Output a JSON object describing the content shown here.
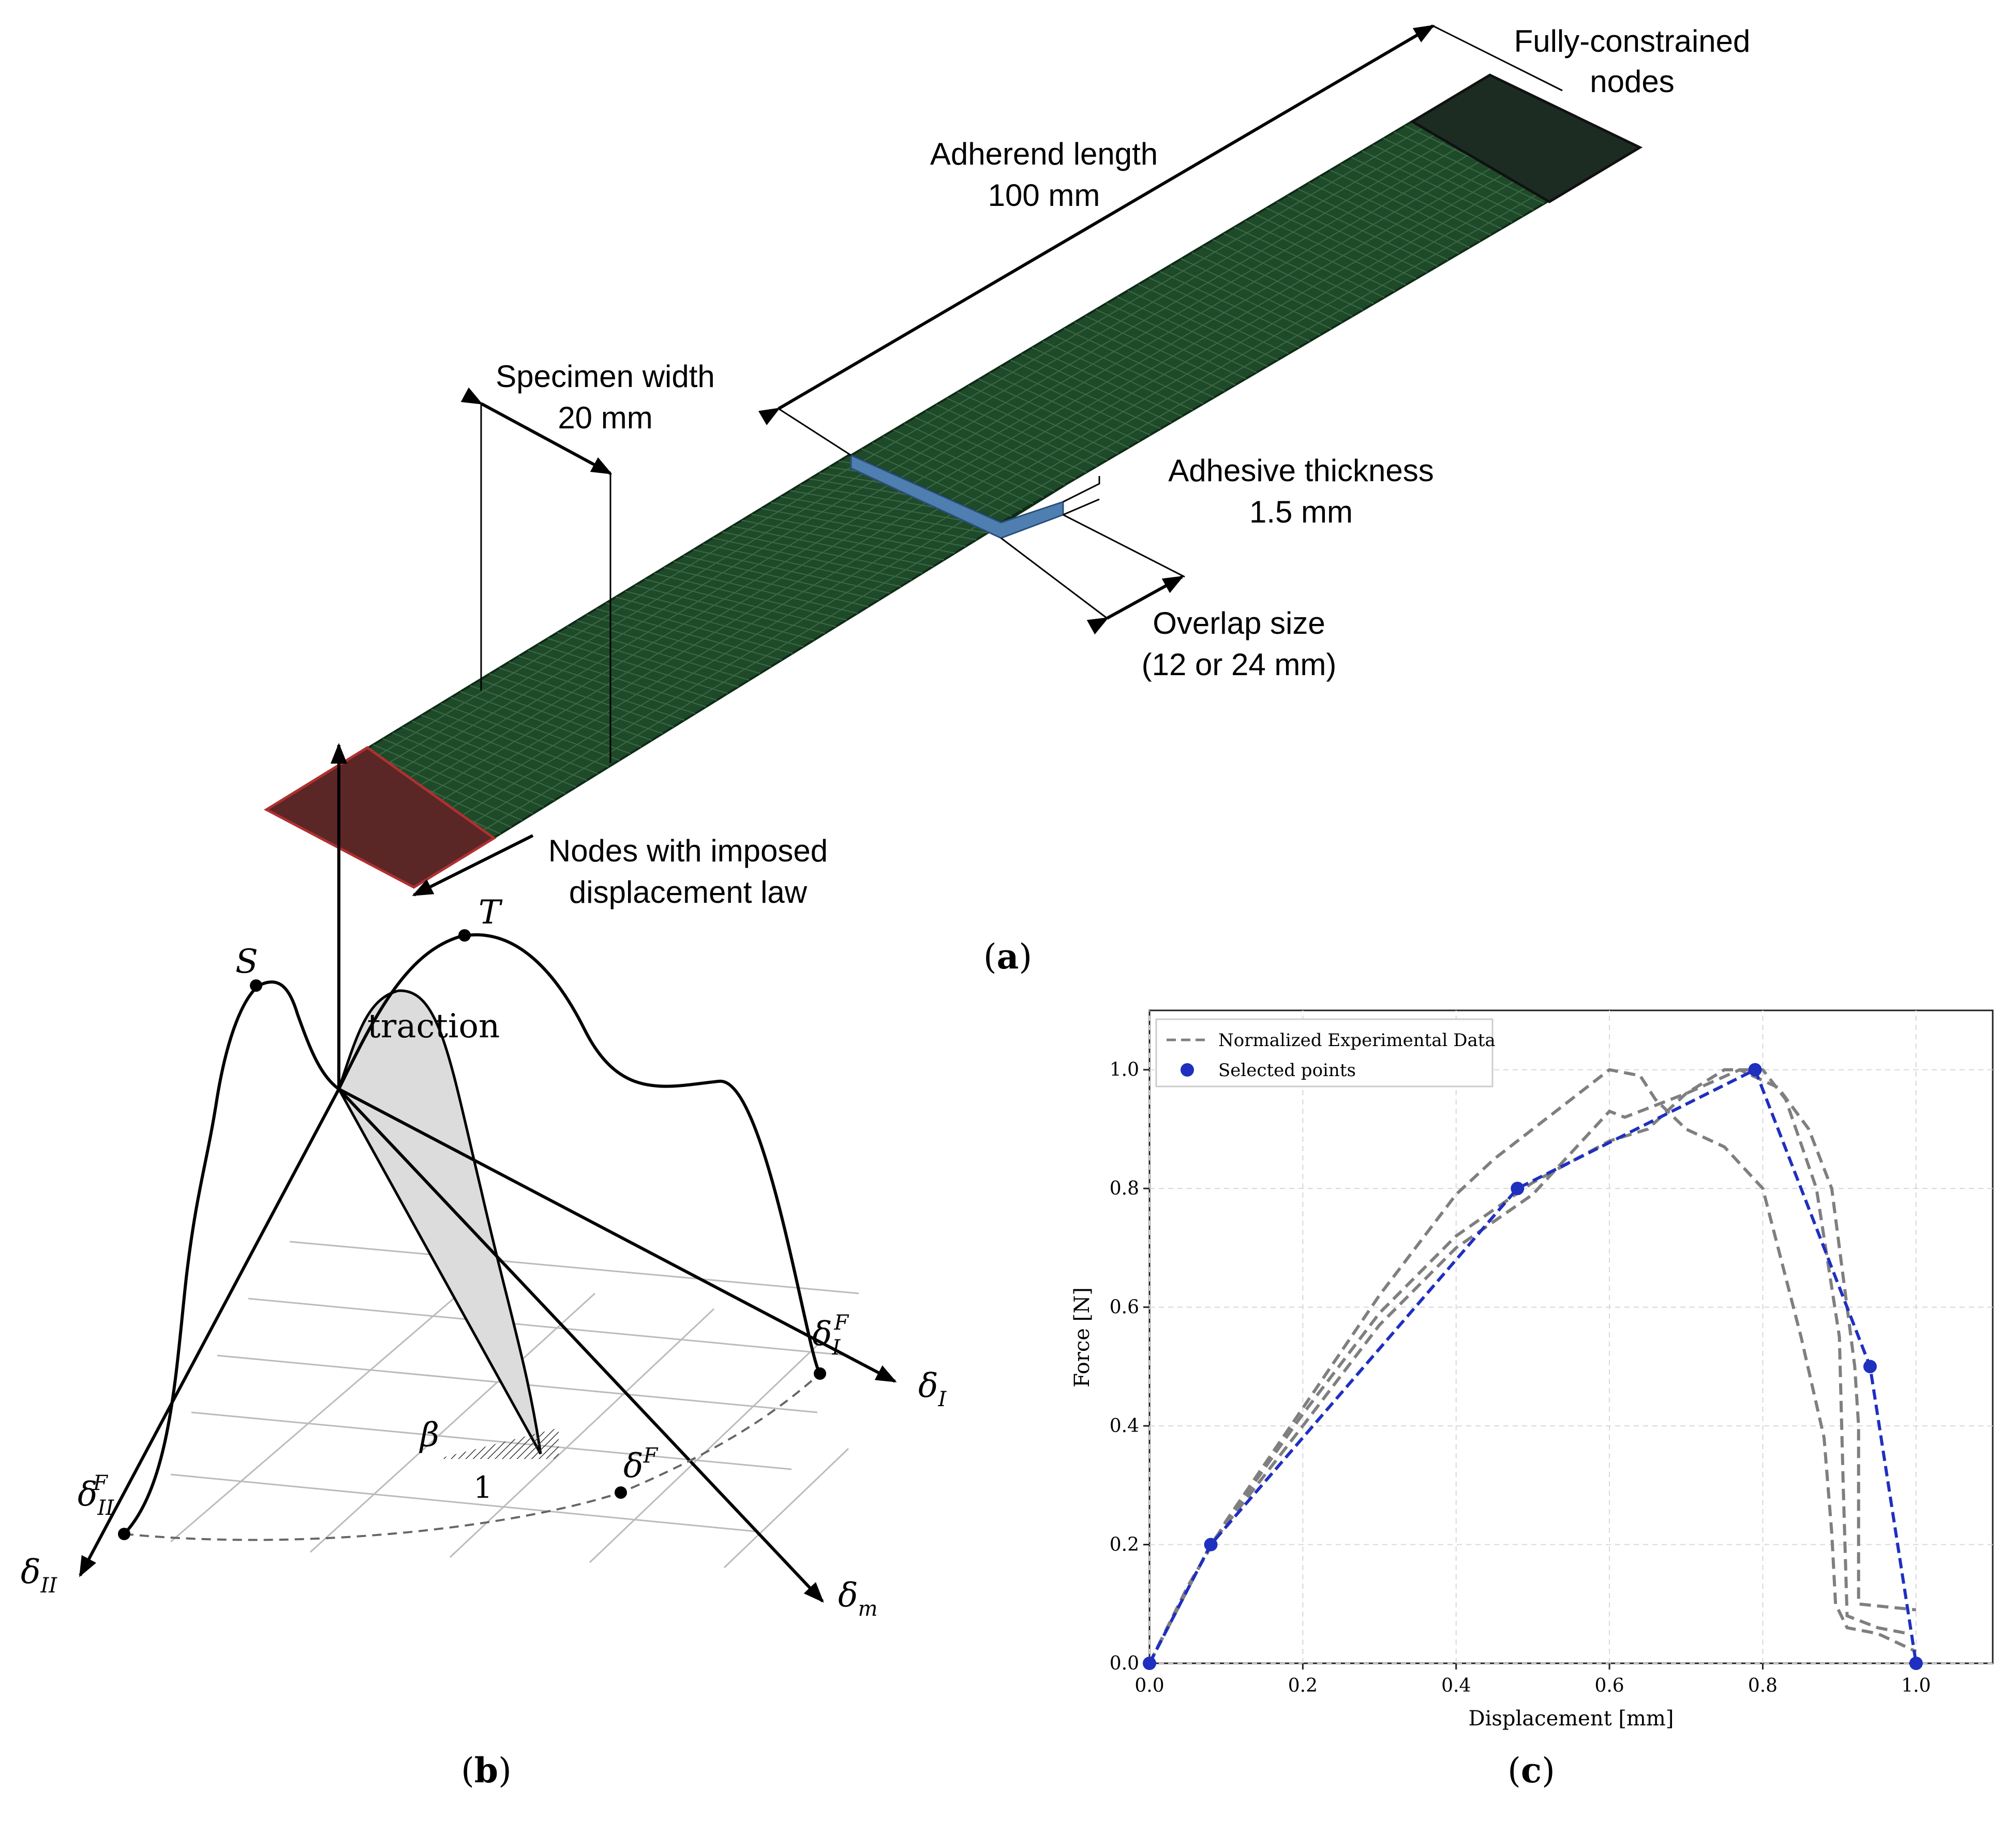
{
  "panel_a": {
    "label_open": "(",
    "label_letter": "a",
    "label_close": ")",
    "fully_constrained_1": "Fully-constrained",
    "fully_constrained_2": "nodes",
    "adherend_1": "Adherend length",
    "adherend_2": "100 mm",
    "specimen_1": "Specimen width",
    "specimen_2": "20 mm",
    "adhesive_1": "Adhesive thickness",
    "adhesive_2": "1.5 mm",
    "overlap_1": "Overlap size",
    "overlap_2": "(12 or 24 mm)",
    "nodes_1": "Nodes with imposed",
    "nodes_2": "displacement law",
    "colors": {
      "adherend": "#1f4a2a",
      "adhesive": "#4f7fb0",
      "constrained": "#2a2a2a",
      "imposed": "#8a2a2a"
    }
  },
  "panel_b": {
    "label_open": "(",
    "label_letter": "b",
    "label_close": ")",
    "traction": "traction",
    "S": "S",
    "T": "T",
    "delta": "δ",
    "sub_I": "I",
    "sub_II": "II",
    "sub_m": "m",
    "sup_F": "F",
    "beta": "β",
    "one": "1"
  },
  "panel_c": {
    "label_open": "(",
    "label_letter": "c",
    "label_close": ")",
    "chart_data": {
      "type": "line",
      "xlabel": "Displacement [mm]",
      "ylabel": "Force [N]",
      "xlim": [
        0.0,
        1.1
      ],
      "ylim": [
        0.0,
        1.1
      ],
      "xticks": [
        "0.0",
        "0.2",
        "0.4",
        "0.6",
        "0.8",
        "1.0"
      ],
      "yticks": [
        "0.0",
        "0.2",
        "0.4",
        "0.6",
        "0.8",
        "1.0"
      ],
      "grid": true,
      "legend_position": "top-left",
      "legend": [
        "Normalized Experimental Data",
        "Selected points"
      ],
      "series": [
        {
          "name": "Normalized Experimental Data",
          "style": "dashed",
          "color": "#7f7f7f",
          "curves": [
            [
              [
                0,
                0
              ],
              [
                0.05,
                0.13
              ],
              [
                0.1,
                0.24
              ],
              [
                0.2,
                0.43
              ],
              [
                0.3,
                0.62
              ],
              [
                0.4,
                0.79
              ],
              [
                0.45,
                0.85
              ],
              [
                0.5,
                0.9
              ],
              [
                0.55,
                0.95
              ],
              [
                0.6,
                1.0
              ],
              [
                0.64,
                0.99
              ],
              [
                0.66,
                0.95
              ],
              [
                0.7,
                0.9
              ],
              [
                0.75,
                0.87
              ],
              [
                0.8,
                0.8
              ],
              [
                0.82,
                0.7
              ],
              [
                0.85,
                0.55
              ],
              [
                0.88,
                0.38
              ],
              [
                0.89,
                0.22
              ],
              [
                0.895,
                0.1
              ],
              [
                0.91,
                0.06
              ],
              [
                0.95,
                0.05
              ],
              [
                1.0,
                0.02
              ]
            ],
            [
              [
                0,
                0
              ],
              [
                0.08,
                0.2
              ],
              [
                0.2,
                0.42
              ],
              [
                0.3,
                0.59
              ],
              [
                0.4,
                0.72
              ],
              [
                0.5,
                0.81
              ],
              [
                0.6,
                0.88
              ],
              [
                0.65,
                0.9
              ],
              [
                0.7,
                0.96
              ],
              [
                0.75,
                1.0
              ],
              [
                0.8,
                1.0
              ],
              [
                0.83,
                0.95
              ],
              [
                0.87,
                0.8
              ],
              [
                0.9,
                0.55
              ],
              [
                0.905,
                0.3
              ],
              [
                0.91,
                0.08
              ],
              [
                0.95,
                0.06
              ],
              [
                0.99,
                0.05
              ]
            ],
            [
              [
                0,
                0
              ],
              [
                0.08,
                0.2
              ],
              [
                0.2,
                0.4
              ],
              [
                0.3,
                0.57
              ],
              [
                0.4,
                0.7
              ],
              [
                0.5,
                0.79
              ],
              [
                0.6,
                0.93
              ],
              [
                0.62,
                0.92
              ],
              [
                0.7,
                0.96
              ],
              [
                0.77,
                1.0
              ],
              [
                0.82,
                0.97
              ],
              [
                0.86,
                0.9
              ],
              [
                0.89,
                0.8
              ],
              [
                0.91,
                0.6
              ],
              [
                0.92,
                0.5
              ],
              [
                0.925,
                0.4
              ],
              [
                0.925,
                0.1
              ],
              [
                1.0,
                0.09
              ]
            ]
          ]
        },
        {
          "name": "Selected points",
          "style": "dashed-markers",
          "color": "#1f2fc0",
          "x": [
            0.0,
            0.08,
            0.48,
            0.79,
            0.94,
            1.0
          ],
          "y": [
            0.0,
            0.2,
            0.8,
            1.0,
            0.5,
            0.0
          ]
        }
      ]
    }
  }
}
